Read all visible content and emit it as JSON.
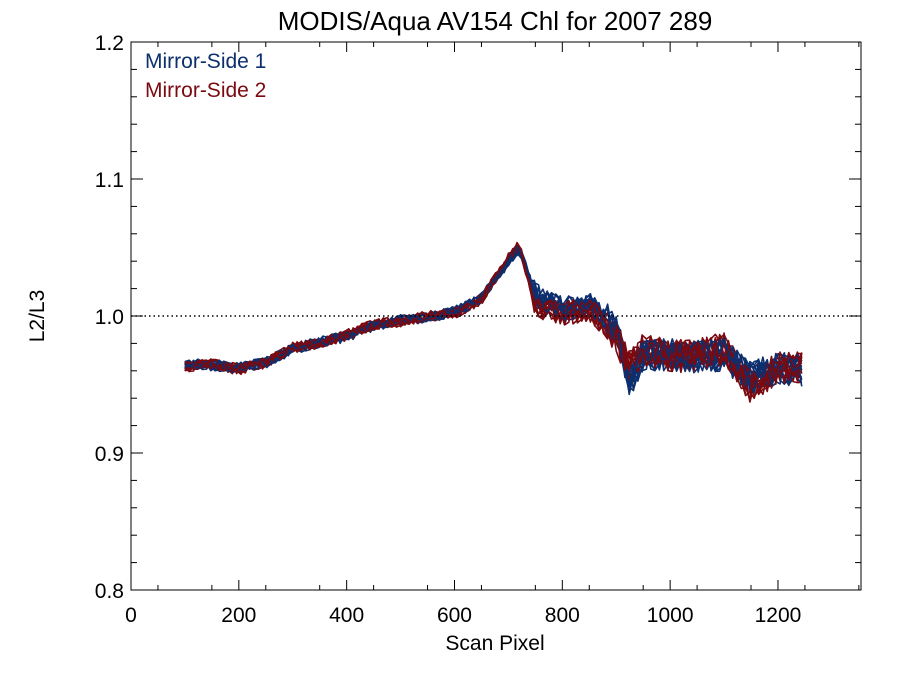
{
  "chart_data": {
    "type": "line",
    "title": "MODIS/Aqua AV154 Chl for 2007 289",
    "xlabel": "Scan Pixel",
    "ylabel": "L2/L3",
    "xlim": [
      0,
      1354
    ],
    "ylim": [
      0.8,
      1.2
    ],
    "x_ticks": [
      "0",
      "200",
      "400",
      "600",
      "800",
      "1000",
      "1200"
    ],
    "y_ticks": [
      "0.8",
      "0.9",
      "1.0",
      "1.1",
      "1.2"
    ],
    "reference_line": {
      "y": 1.0,
      "style": "dotted"
    },
    "legend_position": "top-left",
    "grid": false,
    "profile_x": [
      100,
      150,
      200,
      250,
      300,
      350,
      400,
      450,
      500,
      550,
      600,
      650,
      700,
      720,
      750,
      800,
      850,
      900,
      925,
      950,
      1000,
      1050,
      1100,
      1150,
      1200,
      1250
    ],
    "series": [
      {
        "name": "Mirror-Side 1",
        "color": "#0d2f6e",
        "profile_y": [
          0.965,
          0.964,
          0.962,
          0.966,
          0.976,
          0.981,
          0.985,
          0.993,
          0.997,
          0.999,
          1.003,
          1.013,
          1.04,
          1.05,
          1.015,
          1.005,
          1.008,
          0.992,
          0.95,
          0.972,
          0.972,
          0.97,
          0.972,
          0.955,
          0.962,
          0.96
        ],
        "line_count": 12
      },
      {
        "name": "Mirror-Side 2",
        "color": "#7a0a10",
        "profile_y": [
          0.963,
          0.965,
          0.961,
          0.966,
          0.977,
          0.98,
          0.986,
          0.994,
          0.996,
          1.0,
          1.002,
          1.012,
          1.042,
          1.052,
          1.008,
          1.002,
          1.005,
          0.985,
          0.962,
          0.976,
          0.97,
          0.972,
          0.976,
          0.948,
          0.962,
          0.962
        ],
        "line_count": 12
      }
    ]
  }
}
